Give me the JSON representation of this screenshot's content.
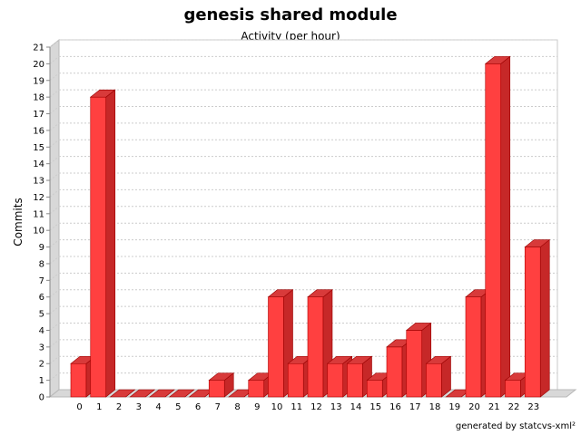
{
  "chart_data": {
    "type": "bar",
    "title": "genesis shared module",
    "subtitle": "Activity (per hour)",
    "xlabel": "",
    "ylabel": "Commits",
    "ylim": [
      0,
      21
    ],
    "yticks": [
      0,
      1,
      2,
      3,
      4,
      5,
      6,
      7,
      8,
      9,
      10,
      11,
      12,
      13,
      14,
      15,
      16,
      17,
      18,
      19,
      20,
      21
    ],
    "categories": [
      "0",
      "1",
      "2",
      "3",
      "4",
      "5",
      "6",
      "7",
      "8",
      "9",
      "10",
      "11",
      "12",
      "13",
      "14",
      "15",
      "16",
      "17",
      "18",
      "19",
      "20",
      "21",
      "22",
      "23"
    ],
    "values": [
      2,
      18,
      0,
      0,
      0,
      0,
      0,
      1,
      0,
      1,
      6,
      2,
      6,
      2,
      2,
      1,
      3,
      4,
      2,
      0,
      6,
      20,
      1,
      9
    ],
    "bar_color": "#ff3b3b",
    "grid": true,
    "style": "3d"
  },
  "footer": "generated by statcvs-xml²"
}
